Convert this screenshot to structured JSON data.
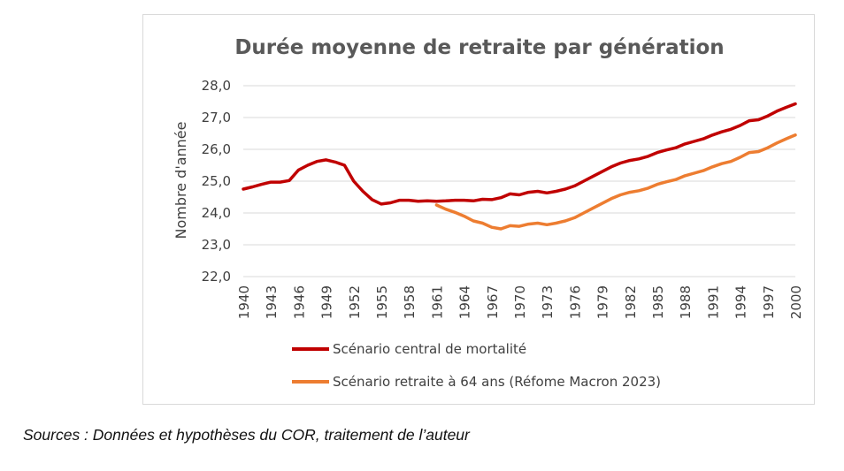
{
  "chart_data": {
    "type": "line",
    "title": "Durée moyenne de retraite par génération",
    "xlabel": "",
    "ylabel": "Nombre d'année",
    "ylim": [
      22,
      28
    ],
    "yticks": [
      "22,0",
      "23,0",
      "24,0",
      "25,0",
      "26,0",
      "27,0",
      "28,0"
    ],
    "xlim": [
      1940,
      2000
    ],
    "xticks": [
      "1940",
      "1943",
      "1946",
      "1949",
      "1952",
      "1955",
      "1958",
      "1961",
      "1964",
      "1967",
      "1970",
      "1973",
      "1976",
      "1979",
      "1982",
      "1985",
      "1988",
      "1991",
      "1994",
      "1997",
      "2000"
    ],
    "grid": true,
    "legend_position": "bottom",
    "series": [
      {
        "name": "Scénario central de mortalité",
        "color": "#c00000",
        "x": [
          1940,
          1941,
          1942,
          1943,
          1944,
          1945,
          1946,
          1947,
          1948,
          1949,
          1950,
          1951,
          1952,
          1953,
          1954,
          1955,
          1956,
          1957,
          1958,
          1959,
          1960,
          1961,
          1962,
          1963,
          1964,
          1965,
          1966,
          1967,
          1968,
          1969,
          1970,
          1971,
          1972,
          1973,
          1974,
          1975,
          1976,
          1977,
          1978,
          1979,
          1980,
          1981,
          1982,
          1983,
          1984,
          1985,
          1986,
          1987,
          1988,
          1989,
          1990,
          1991,
          1992,
          1993,
          1994,
          1995,
          1996,
          1997,
          1998,
          1999,
          2000
        ],
        "values": [
          24.75,
          24.82,
          24.9,
          24.97,
          24.97,
          25.02,
          25.35,
          25.5,
          25.62,
          25.67,
          25.6,
          25.5,
          25.0,
          24.68,
          24.42,
          24.28,
          24.32,
          24.4,
          24.4,
          24.37,
          24.38,
          24.37,
          24.38,
          24.4,
          24.4,
          24.38,
          24.43,
          24.42,
          24.48,
          24.6,
          24.57,
          24.65,
          24.68,
          24.63,
          24.68,
          24.75,
          24.85,
          25.0,
          25.15,
          25.3,
          25.45,
          25.57,
          25.65,
          25.7,
          25.78,
          25.9,
          25.98,
          26.05,
          26.17,
          26.25,
          26.33,
          26.45,
          26.55,
          26.63,
          26.75,
          26.9,
          26.93,
          27.05,
          27.2,
          27.32,
          27.43
        ]
      },
      {
        "name": "Scénario retraite à 64 ans (Réfome Macron 2023)",
        "color": "#ed7d31",
        "x": [
          1961,
          1962,
          1963,
          1964,
          1965,
          1966,
          1967,
          1968,
          1969,
          1970,
          1971,
          1972,
          1973,
          1974,
          1975,
          1976,
          1977,
          1978,
          1979,
          1980,
          1981,
          1982,
          1983,
          1984,
          1985,
          1986,
          1987,
          1988,
          1989,
          1990,
          1991,
          1992,
          1993,
          1994,
          1995,
          1996,
          1997,
          1998,
          1999,
          2000
        ],
        "values": [
          24.25,
          24.12,
          24.02,
          23.9,
          23.75,
          23.68,
          23.55,
          23.5,
          23.6,
          23.58,
          23.65,
          23.68,
          23.63,
          23.68,
          23.75,
          23.85,
          24.0,
          24.15,
          24.3,
          24.45,
          24.57,
          24.65,
          24.7,
          24.78,
          24.9,
          24.98,
          25.05,
          25.17,
          25.25,
          25.33,
          25.45,
          25.55,
          25.62,
          25.75,
          25.9,
          25.93,
          26.05,
          26.2,
          26.33,
          26.45
        ]
      }
    ]
  },
  "source_note": "Sources : Données et hypothèses du COR, traitement de l’auteur"
}
